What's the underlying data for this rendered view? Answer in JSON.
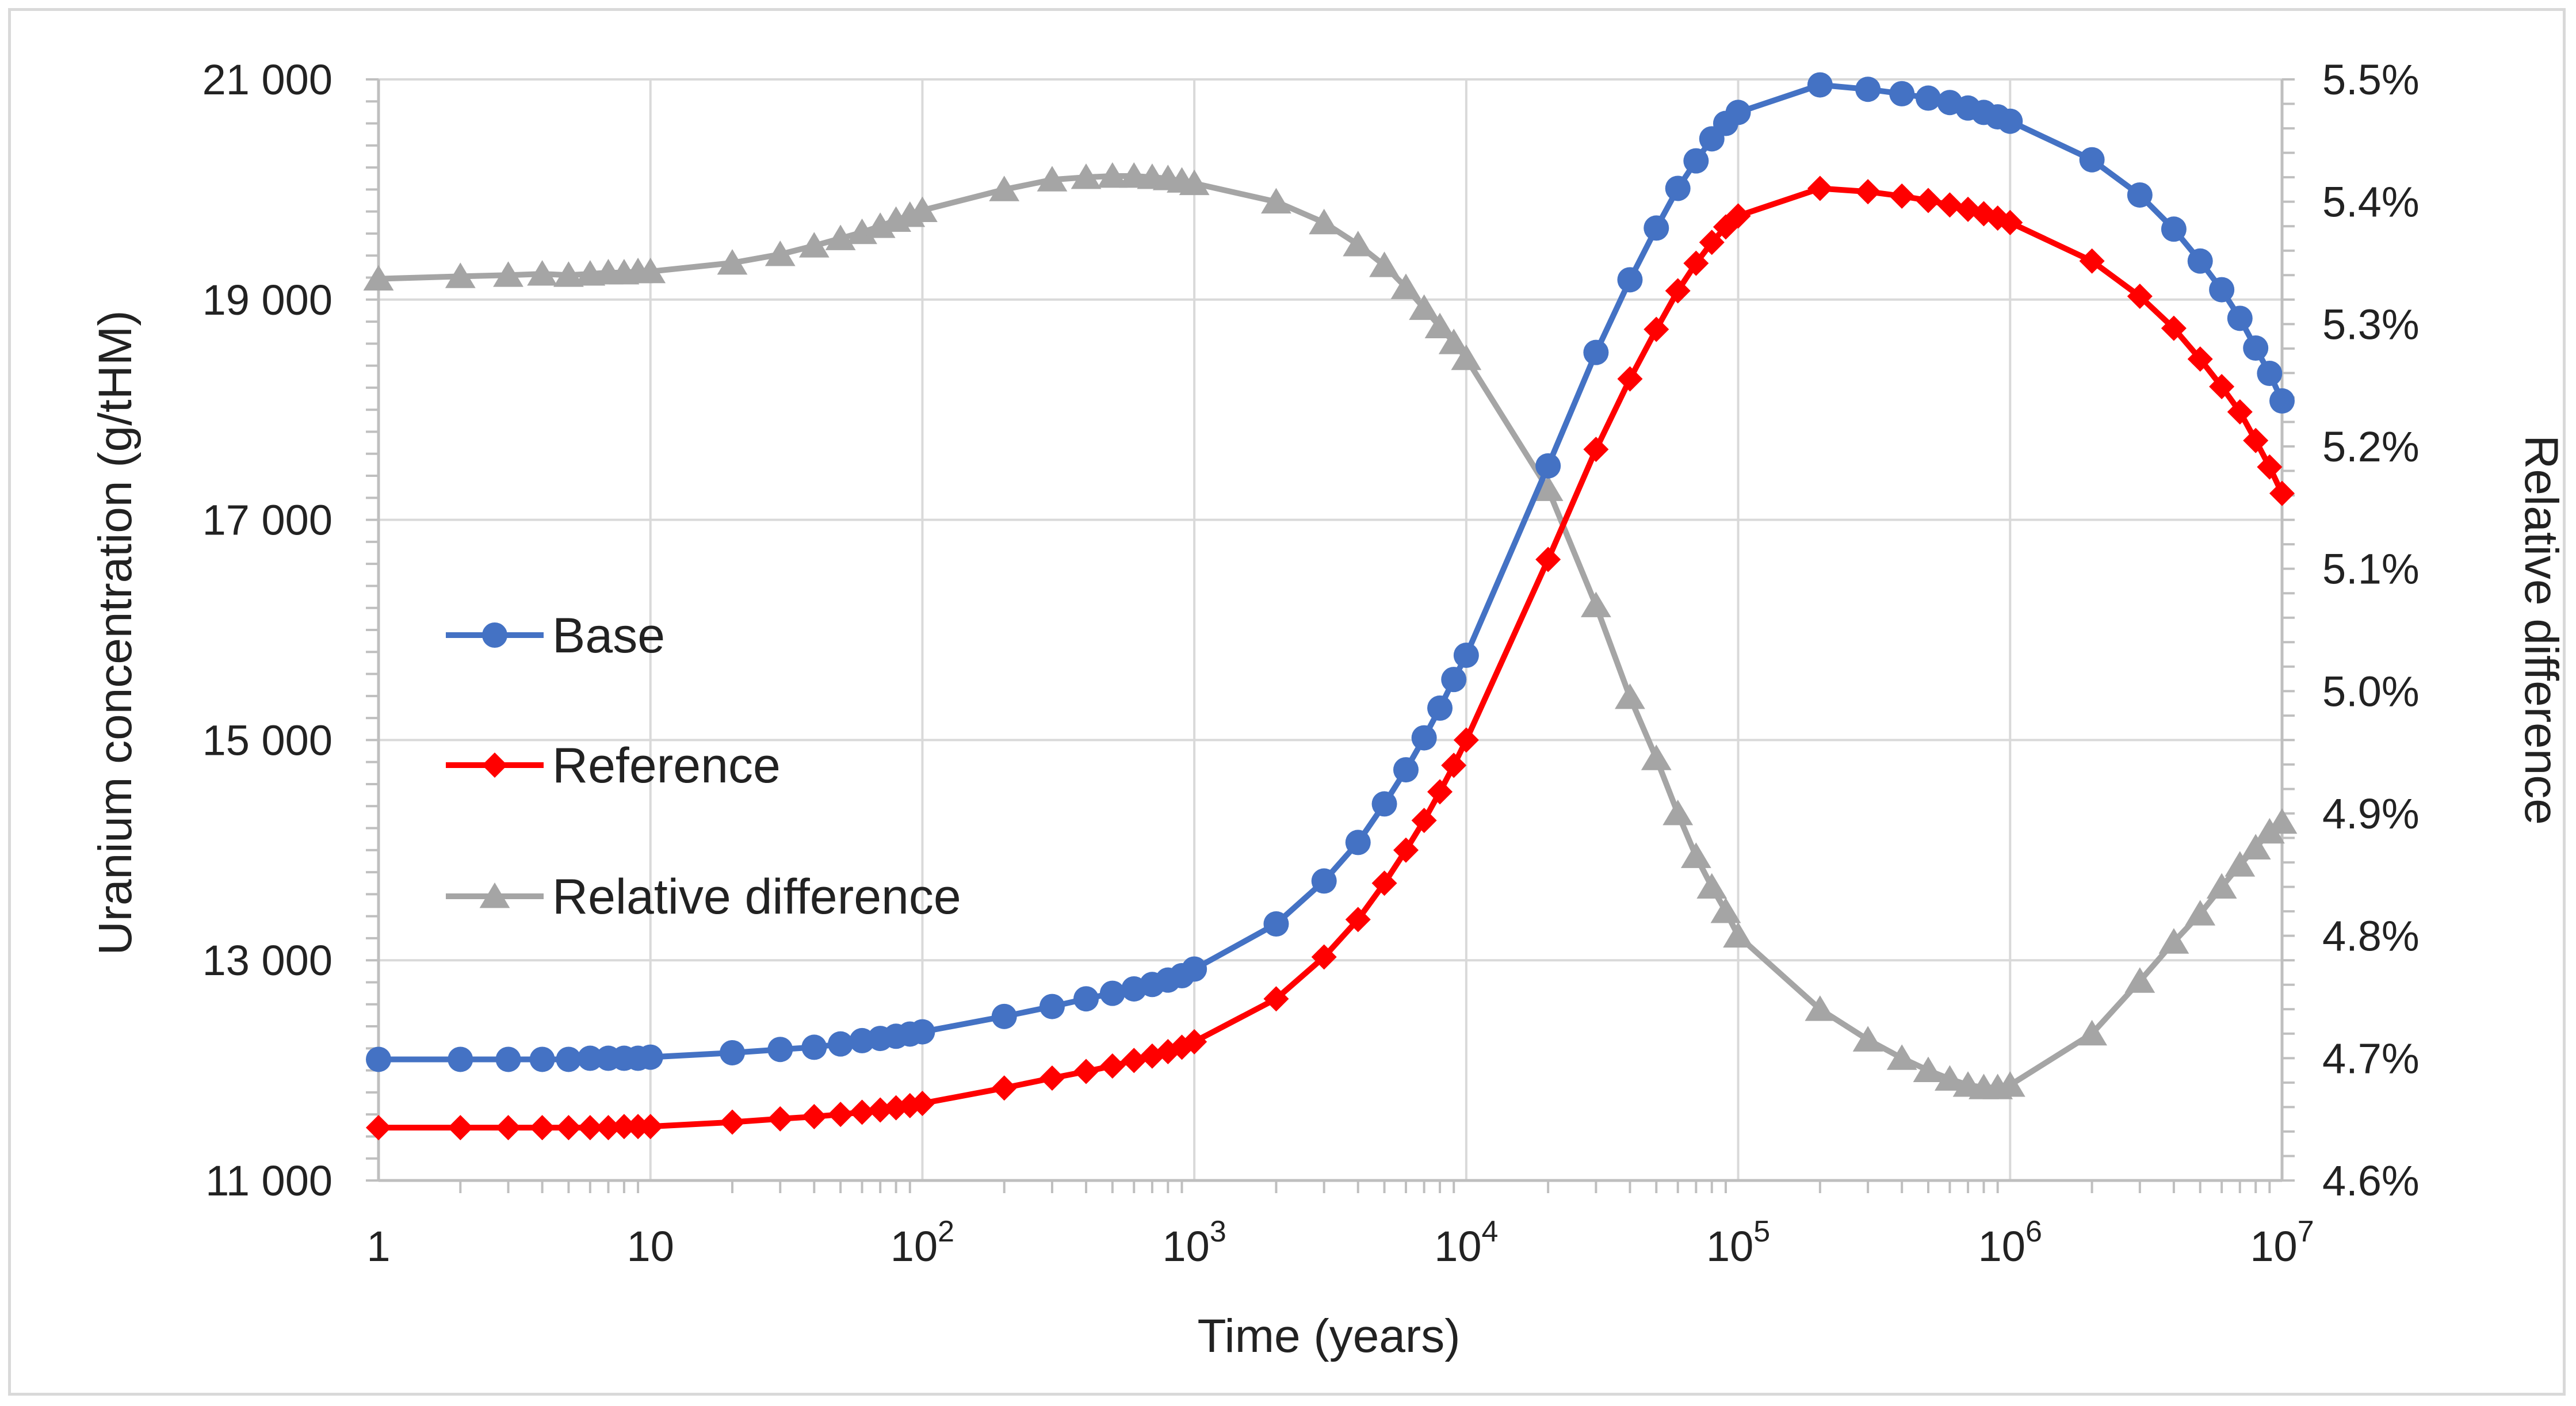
{
  "chart_data": {
    "type": "line",
    "x_scale": "log",
    "xlabel": "Time (years)",
    "ylabel_left": "Uranium concentration  (g/tHM)",
    "ylabel_right": "Relative difference",
    "xlim": [
      1,
      10000000
    ],
    "ylim_left": [
      11000,
      21000
    ],
    "ylim_right": [
      4.6,
      5.5
    ],
    "x_ticks": [
      {
        "value": 1,
        "base": "1",
        "exp": ""
      },
      {
        "value": 10,
        "base": "10",
        "exp": ""
      },
      {
        "value": 100,
        "base": "10",
        "exp": "2"
      },
      {
        "value": 1000,
        "base": "10",
        "exp": "3"
      },
      {
        "value": 10000,
        "base": "10",
        "exp": "4"
      },
      {
        "value": 100000,
        "base": "10",
        "exp": "5"
      },
      {
        "value": 1000000,
        "base": "10",
        "exp": "6"
      },
      {
        "value": 10000000,
        "base": "10",
        "exp": "7"
      }
    ],
    "y_left_ticks": [
      {
        "value": 11000,
        "label": "11 000"
      },
      {
        "value": 13000,
        "label": "13 000"
      },
      {
        "value": 15000,
        "label": "15 000"
      },
      {
        "value": 17000,
        "label": "17 000"
      },
      {
        "value": 19000,
        "label": "19 000"
      },
      {
        "value": 21000,
        "label": "21 000"
      }
    ],
    "y_right_ticks": [
      {
        "value": 4.6,
        "label": "4.6%"
      },
      {
        "value": 4.7,
        "label": "4.7%"
      },
      {
        "value": 4.8,
        "label": "4.8%"
      },
      {
        "value": 4.9,
        "label": "4.9%"
      },
      {
        "value": 5.0,
        "label": "5.0%"
      },
      {
        "value": 5.1,
        "label": "5.1%"
      },
      {
        "value": 5.2,
        "label": "5.2%"
      },
      {
        "value": 5.3,
        "label": "5.3%"
      },
      {
        "value": 5.4,
        "label": "5.4%"
      },
      {
        "value": 5.5,
        "label": "5.5%"
      }
    ],
    "grid": true,
    "legend_position": "left-middle",
    "x": [
      1,
      2,
      3,
      4,
      5,
      6,
      7,
      8,
      9,
      10,
      20,
      30,
      40,
      50,
      60,
      70,
      80,
      90,
      100,
      200,
      300,
      400,
      500,
      600,
      700,
      800,
      900,
      1000,
      2000,
      3000,
      4000,
      5000,
      6000,
      7000,
      8000,
      9000,
      10000,
      20000,
      30000,
      40000,
      50000,
      60000,
      70000,
      80000,
      90000,
      100000,
      200000,
      300000,
      400000,
      500000,
      600000,
      700000,
      800000,
      900000,
      1000000,
      2000000,
      3000000,
      4000000,
      5000000,
      6000000,
      7000000,
      8000000,
      9000000,
      10000000
    ],
    "series": [
      {
        "name": "Base",
        "axis": "left",
        "color": "#4472c4",
        "marker": "circle",
        "values": [
          12100,
          12100,
          12100,
          12100,
          12100,
          12110,
          12110,
          12110,
          12110,
          12120,
          12160,
          12190,
          12210,
          12240,
          12270,
          12290,
          12310,
          12330,
          12350,
          12490,
          12580,
          12650,
          12700,
          12740,
          12780,
          12820,
          12860,
          12920,
          13330,
          13720,
          14070,
          14420,
          14730,
          15020,
          15290,
          15550,
          15770,
          17490,
          18520,
          19180,
          19650,
          20010,
          20260,
          20460,
          20600,
          20700,
          20950,
          20910,
          20870,
          20830,
          20790,
          20740,
          20700,
          20660,
          20620,
          20270,
          19950,
          19640,
          19350,
          19090,
          18830,
          18560,
          18330,
          18080
        ]
      },
      {
        "name": "Reference",
        "axis": "left",
        "color": "#ff0000",
        "marker": "diamond",
        "values": [
          11480,
          11480,
          11480,
          11480,
          11480,
          11480,
          11480,
          11490,
          11490,
          11490,
          11530,
          11560,
          11580,
          11600,
          11620,
          11640,
          11660,
          11680,
          11700,
          11840,
          11930,
          11990,
          12040,
          12090,
          12130,
          12170,
          12210,
          12260,
          12650,
          13030,
          13370,
          13700,
          14000,
          14270,
          14530,
          14770,
          15000,
          16640,
          17640,
          18280,
          18730,
          19080,
          19330,
          19520,
          19660,
          19760,
          20010,
          19980,
          19940,
          19900,
          19860,
          19820,
          19780,
          19740,
          19700,
          19350,
          19030,
          18740,
          18460,
          18210,
          17980,
          17720,
          17480,
          17240
        ]
      },
      {
        "name": "Relative difference",
        "axis": "right",
        "color": "#a5a5a5",
        "marker": "triangle",
        "values": [
          5.337,
          5.339,
          5.34,
          5.341,
          5.34,
          5.341,
          5.342,
          5.342,
          5.343,
          5.343,
          5.35,
          5.357,
          5.364,
          5.37,
          5.375,
          5.38,
          5.385,
          5.389,
          5.393,
          5.41,
          5.418,
          5.42,
          5.421,
          5.421,
          5.42,
          5.419,
          5.417,
          5.415,
          5.4,
          5.383,
          5.365,
          5.348,
          5.33,
          5.313,
          5.298,
          5.285,
          5.272,
          5.165,
          5.07,
          4.995,
          4.945,
          4.9,
          4.865,
          4.84,
          4.82,
          4.8,
          4.74,
          4.715,
          4.7,
          4.69,
          4.683,
          4.678,
          4.676,
          4.676,
          4.678,
          4.72,
          4.763,
          4.795,
          4.818,
          4.84,
          4.858,
          4.872,
          4.885,
          4.893
        ]
      }
    ]
  }
}
